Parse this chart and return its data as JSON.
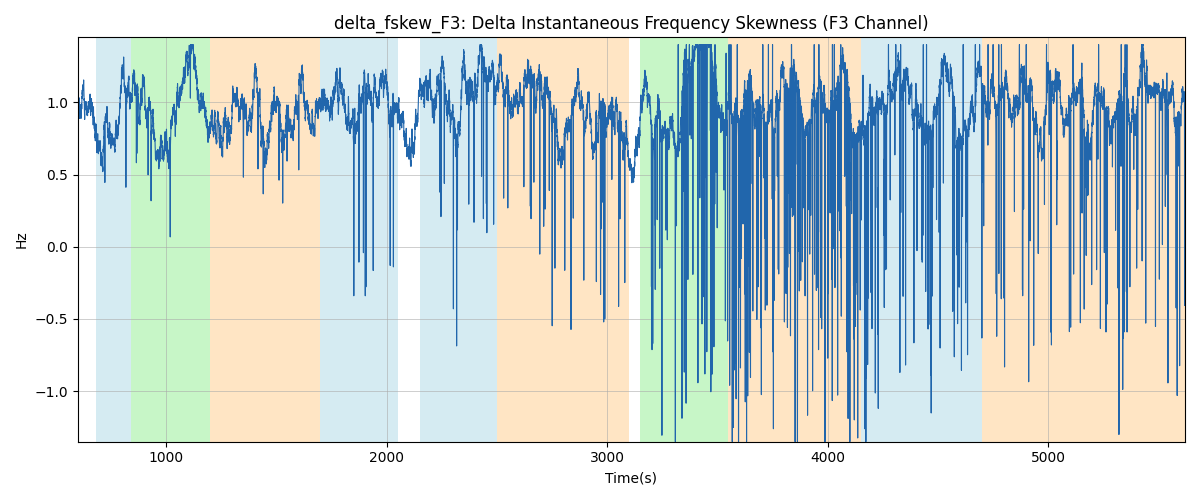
{
  "title": "delta_fskew_F3: Delta Instantaneous Frequency Skewness (F3 Channel)",
  "xlabel": "Time(s)",
  "ylabel": "Hz",
  "t_start": 600,
  "t_end": 5620,
  "ylim": [
    -1.35,
    1.45
  ],
  "line_color": "#2166ac",
  "line_width": 0.8,
  "bg_color": "white",
  "title_fontsize": 12,
  "bands": [
    {
      "xmin": 680,
      "xmax": 840,
      "color": "#add8e6",
      "alpha": 0.5
    },
    {
      "xmin": 840,
      "xmax": 1200,
      "color": "#90ee90",
      "alpha": 0.5
    },
    {
      "xmin": 1200,
      "xmax": 1700,
      "color": "#ffd59e",
      "alpha": 0.6
    },
    {
      "xmin": 1700,
      "xmax": 2050,
      "color": "#add8e6",
      "alpha": 0.5
    },
    {
      "xmin": 2150,
      "xmax": 2500,
      "color": "#add8e6",
      "alpha": 0.5
    },
    {
      "xmin": 2500,
      "xmax": 3100,
      "color": "#ffd59e",
      "alpha": 0.6
    },
    {
      "xmin": 3150,
      "xmax": 3550,
      "color": "#90ee90",
      "alpha": 0.5
    },
    {
      "xmin": 3550,
      "xmax": 4150,
      "color": "#ffd59e",
      "alpha": 0.6
    },
    {
      "xmin": 4150,
      "xmax": 4700,
      "color": "#add8e6",
      "alpha": 0.5
    },
    {
      "xmin": 4700,
      "xmax": 5620,
      "color": "#ffd59e",
      "alpha": 0.6
    }
  ],
  "yticks": [
    -1.0,
    -0.5,
    0.0,
    0.5,
    1.0
  ],
  "xticks": [
    1000,
    2000,
    3000,
    4000,
    5000
  ]
}
